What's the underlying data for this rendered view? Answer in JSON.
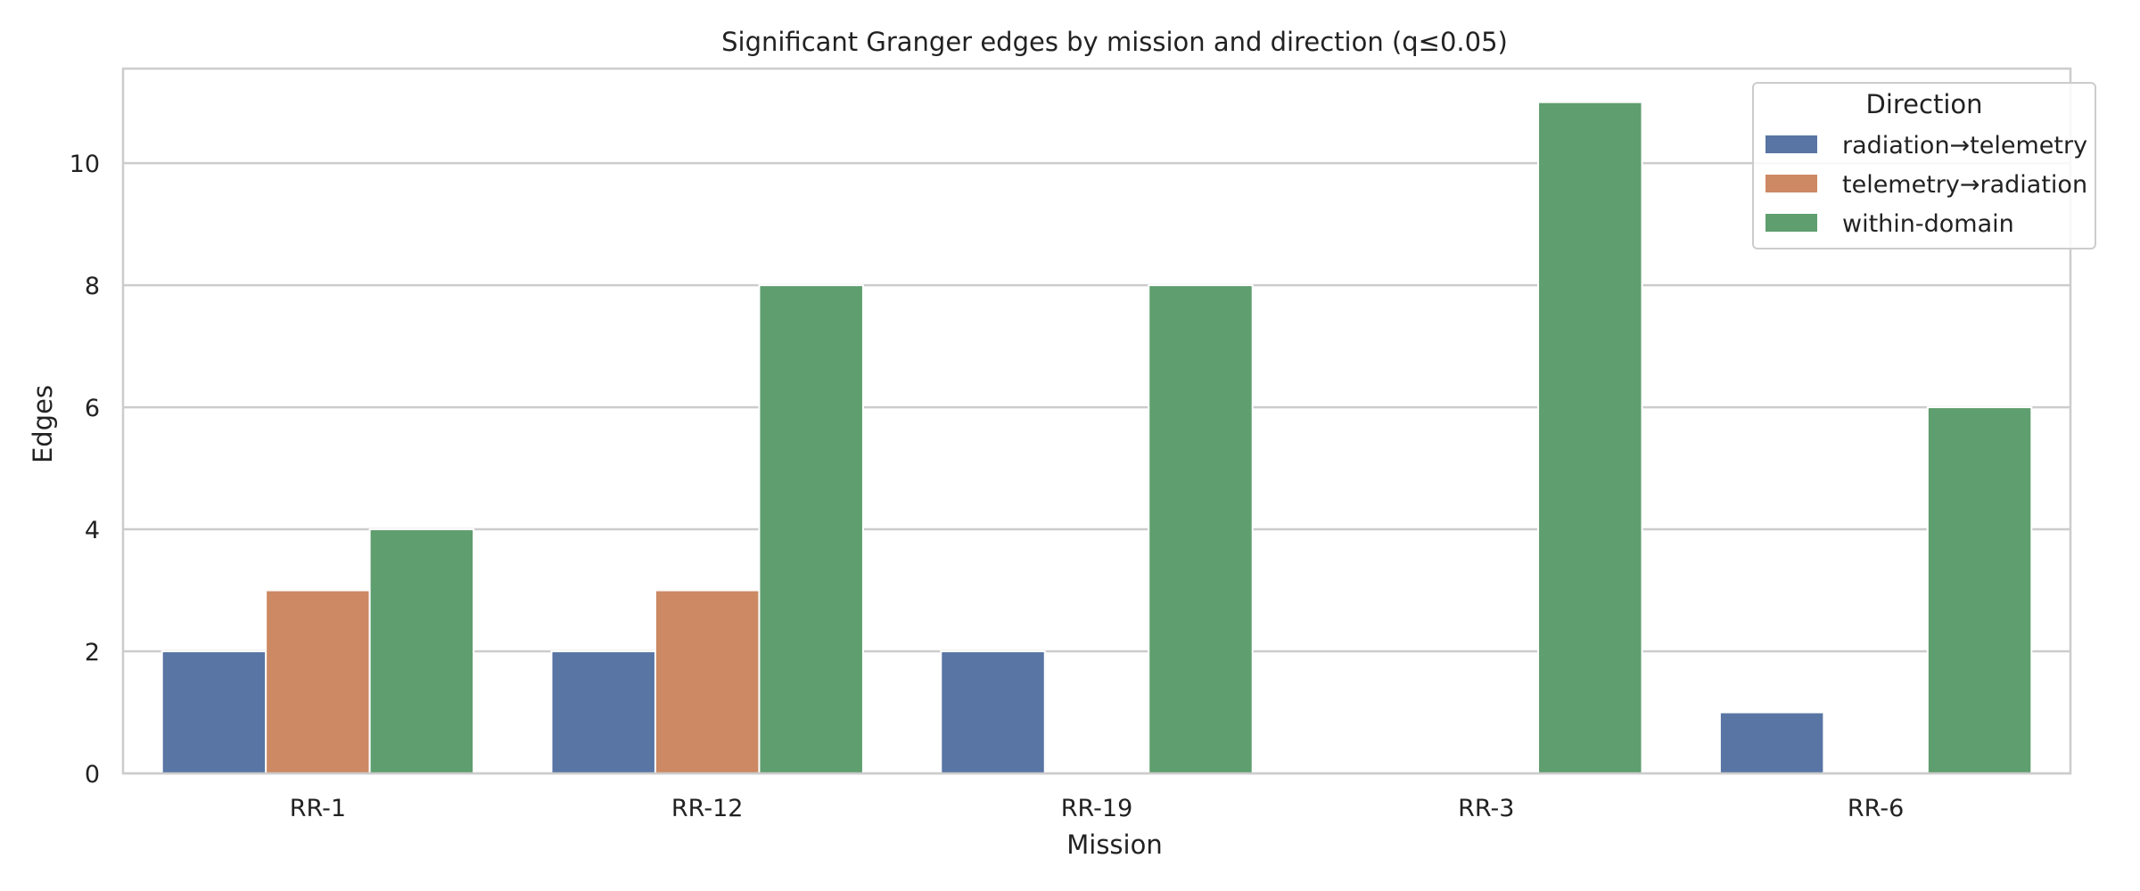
{
  "chart_data": {
    "type": "bar",
    "title": "Significant Granger edges by mission and direction (q≤0.05)",
    "xlabel": "Mission",
    "ylabel": "Edges",
    "categories": [
      "RR-1",
      "RR-12",
      "RR-19",
      "RR-3",
      "RR-6"
    ],
    "ylim": [
      0,
      11.55
    ],
    "yticks": [
      "0",
      "2",
      "4",
      "6",
      "8",
      "10"
    ],
    "grid": true,
    "legend": {
      "title": "Direction",
      "placement": "top-right"
    },
    "series": [
      {
        "name": "radiation→telemetry",
        "color": "#5875a4",
        "values": [
          2,
          2,
          2,
          0,
          1
        ]
      },
      {
        "name": "telemetry→radiation",
        "color": "#cc8963",
        "values": [
          3,
          3,
          0,
          0,
          0
        ]
      },
      {
        "name": "within-domain",
        "color": "#5f9e6e",
        "values": [
          4,
          8,
          8,
          11,
          6
        ]
      }
    ]
  }
}
